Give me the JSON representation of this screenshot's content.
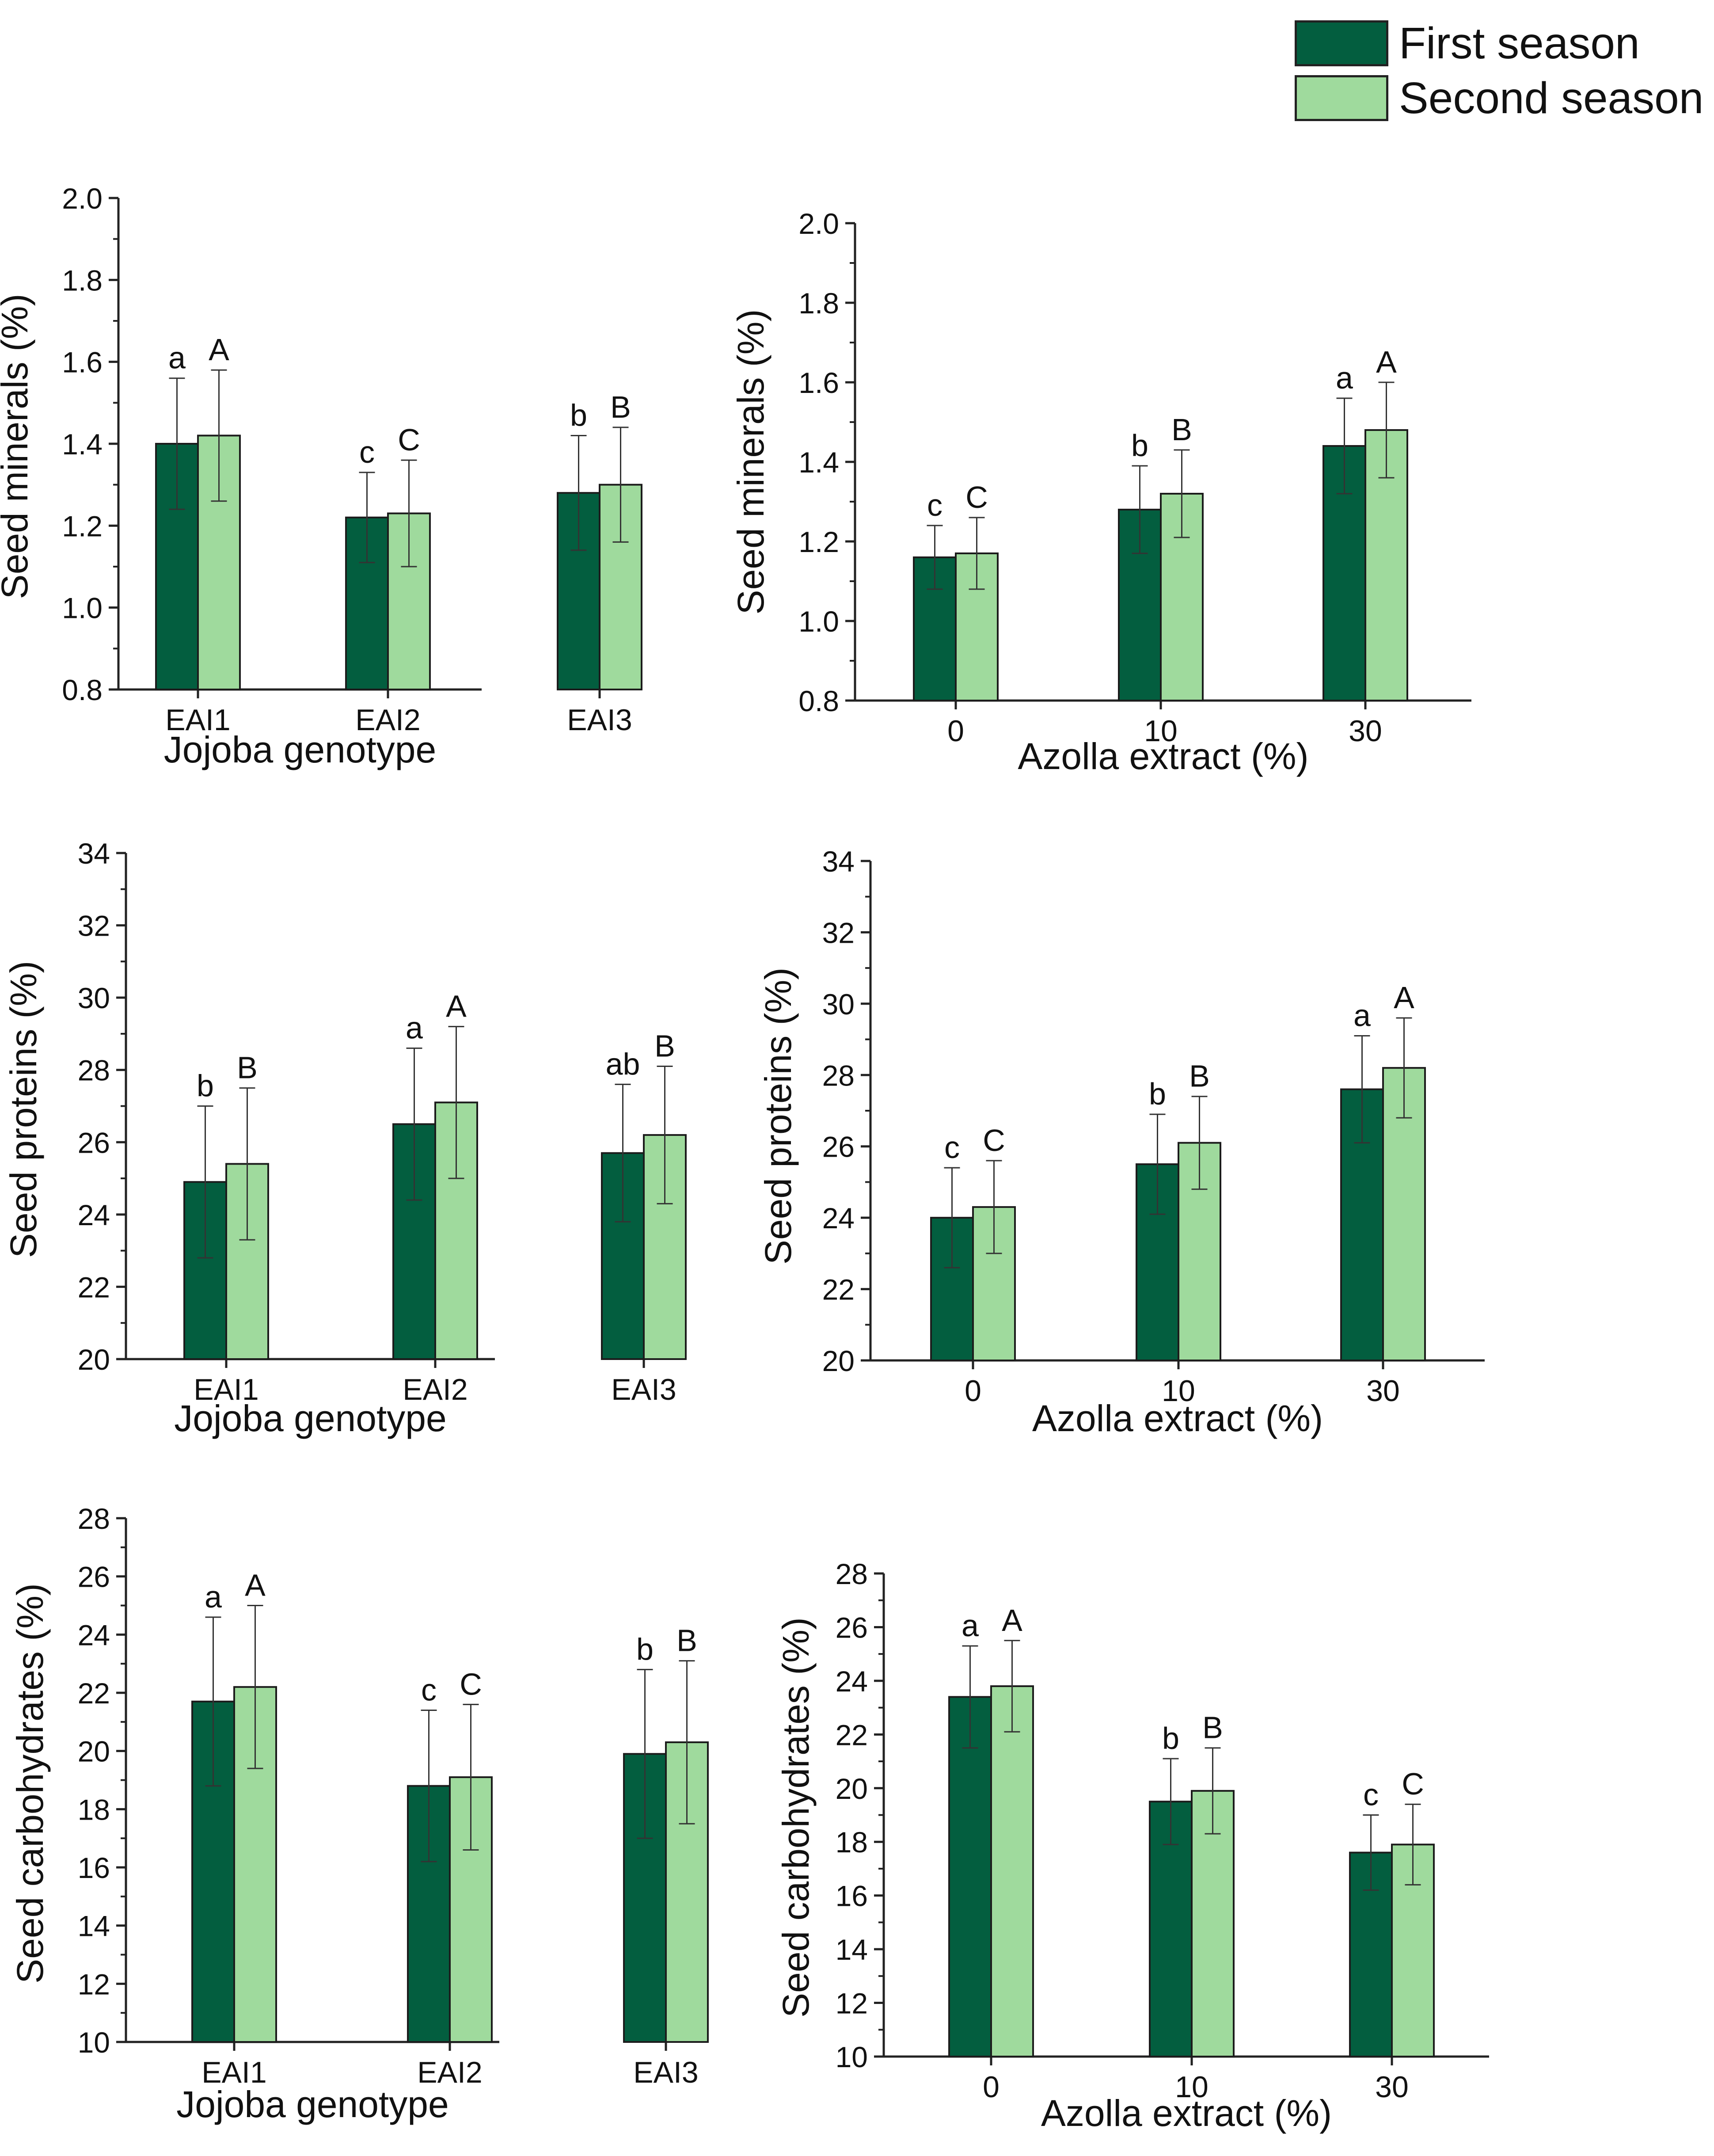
{
  "legend": {
    "first_label": "First season",
    "second_label": "Second season",
    "first_color": "#035E3F",
    "second_color": "#9FDA9D"
  },
  "chart_data": [
    {
      "type": "bar",
      "xlabel": "Jojoba genotype",
      "ylabel": "Seed minerals (%)",
      "ylim": [
        0.8,
        2.0
      ],
      "yticks": [
        0.8,
        1.0,
        1.2,
        1.4,
        1.6,
        1.8,
        2.0
      ],
      "tick_decimals": 1,
      "categories": [
        "EAI1",
        "EAI2",
        "EAI3"
      ],
      "series": [
        {
          "name": "First season",
          "values": [
            1.4,
            1.22,
            1.28
          ],
          "errors": [
            0.16,
            0.11,
            0.14
          ],
          "letters": [
            "a",
            "c",
            "b"
          ]
        },
        {
          "name": "Second season",
          "values": [
            1.42,
            1.23,
            1.3
          ],
          "errors": [
            0.16,
            0.13,
            0.14
          ],
          "letters": [
            "A",
            "C",
            "B"
          ]
        }
      ]
    },
    {
      "type": "bar",
      "xlabel": "Azolla extract (%)",
      "ylabel": "Seed minerals (%)",
      "ylim": [
        0.8,
        2.0
      ],
      "yticks": [
        0.8,
        1.0,
        1.2,
        1.4,
        1.6,
        1.8,
        2.0
      ],
      "tick_decimals": 1,
      "categories": [
        "0",
        "10",
        "30"
      ],
      "series": [
        {
          "name": "First season",
          "values": [
            1.16,
            1.28,
            1.44
          ],
          "errors": [
            0.08,
            0.11,
            0.12
          ],
          "letters": [
            "c",
            "b",
            "a"
          ]
        },
        {
          "name": "Second season",
          "values": [
            1.17,
            1.32,
            1.48
          ],
          "errors": [
            0.09,
            0.11,
            0.12
          ],
          "letters": [
            "C",
            "B",
            "A"
          ]
        }
      ]
    },
    {
      "type": "bar",
      "xlabel": "Jojoba genotype",
      "ylabel": "Seed proteins (%)",
      "ylim": [
        20,
        34
      ],
      "yticks": [
        20,
        22,
        24,
        26,
        28,
        30,
        32,
        34
      ],
      "tick_decimals": 0,
      "categories": [
        "EAI1",
        "EAI2",
        "EAI3"
      ],
      "series": [
        {
          "name": "First season",
          "values": [
            24.9,
            26.5,
            25.7
          ],
          "errors": [
            2.1,
            2.1,
            1.9
          ],
          "letters": [
            "b",
            "a",
            "ab"
          ]
        },
        {
          "name": "Second season",
          "values": [
            25.4,
            27.1,
            26.2
          ],
          "errors": [
            2.1,
            2.1,
            1.9
          ],
          "letters": [
            "B",
            "A",
            "B"
          ]
        }
      ]
    },
    {
      "type": "bar",
      "xlabel": "Azolla extract (%)",
      "ylabel": "Seed proteins (%)",
      "ylim": [
        20,
        34
      ],
      "yticks": [
        20,
        22,
        24,
        26,
        28,
        30,
        32,
        34
      ],
      "tick_decimals": 0,
      "categories": [
        "0",
        "10",
        "30"
      ],
      "series": [
        {
          "name": "First season",
          "values": [
            24.0,
            25.5,
            27.6
          ],
          "errors": [
            1.4,
            1.4,
            1.5
          ],
          "letters": [
            "c",
            "b",
            "a"
          ]
        },
        {
          "name": "Second season",
          "values": [
            24.3,
            26.1,
            28.2
          ],
          "errors": [
            1.3,
            1.3,
            1.4
          ],
          "letters": [
            "C",
            "B",
            "A"
          ]
        }
      ]
    },
    {
      "type": "bar",
      "xlabel": "Jojoba genotype",
      "ylabel": "Seed carbohydrates (%)",
      "ylim": [
        10,
        28
      ],
      "yticks": [
        10,
        12,
        14,
        16,
        18,
        20,
        22,
        24,
        26,
        28
      ],
      "tick_decimals": 0,
      "categories": [
        "EAI1",
        "EAI2",
        "EAI3"
      ],
      "series": [
        {
          "name": "First season",
          "values": [
            21.7,
            18.8,
            19.9
          ],
          "errors": [
            2.9,
            2.6,
            2.9
          ],
          "letters": [
            "a",
            "c",
            "b"
          ]
        },
        {
          "name": "Second season",
          "values": [
            22.2,
            19.1,
            20.3
          ],
          "errors": [
            2.8,
            2.5,
            2.8
          ],
          "letters": [
            "A",
            "C",
            "B"
          ]
        }
      ]
    },
    {
      "type": "bar",
      "xlabel": "Azolla extract (%)",
      "ylabel": "Seed carbohydrates (%)",
      "ylim": [
        10,
        28
      ],
      "yticks": [
        10,
        12,
        14,
        16,
        18,
        20,
        22,
        24,
        26,
        28
      ],
      "tick_decimals": 0,
      "categories": [
        "0",
        "10",
        "30"
      ],
      "series": [
        {
          "name": "First season",
          "values": [
            23.4,
            19.5,
            17.6
          ],
          "errors": [
            1.9,
            1.6,
            1.4
          ],
          "letters": [
            "a",
            "b",
            "c"
          ]
        },
        {
          "name": "Second season",
          "values": [
            23.8,
            19.9,
            17.9
          ],
          "errors": [
            1.7,
            1.6,
            1.5
          ],
          "letters": [
            "A",
            "B",
            "C"
          ]
        }
      ]
    }
  ]
}
